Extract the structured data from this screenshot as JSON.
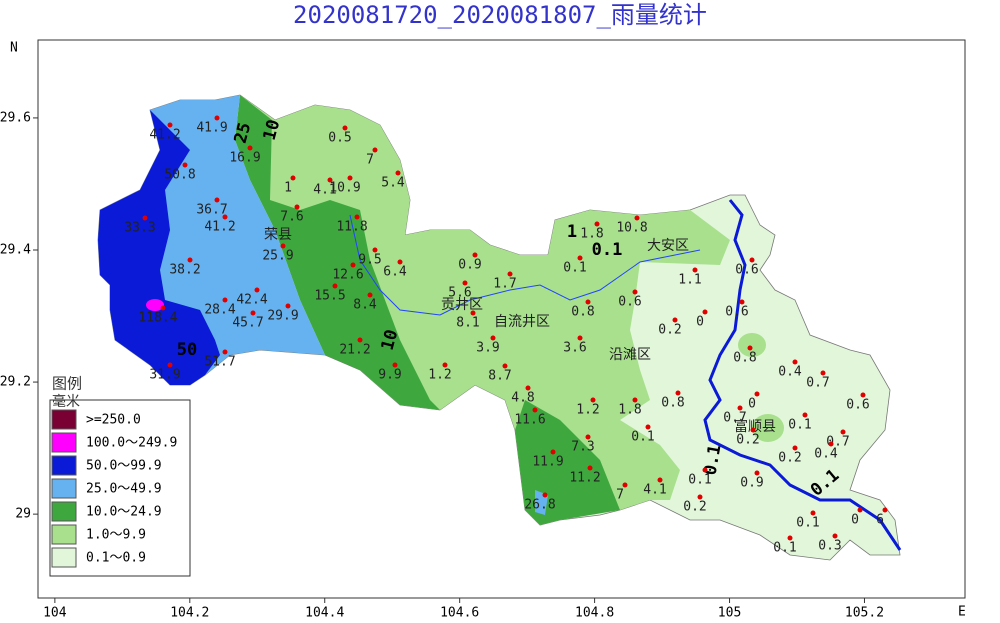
{
  "title": "2020081720_2020081807_雨量统计",
  "axes": {
    "x_label": "E",
    "y_label": "N",
    "xlim": [
      103.975,
      105.349
    ],
    "ylim": [
      28.873,
      29.718
    ],
    "xticks": [
      104,
      104.2,
      104.4,
      104.6,
      104.8,
      105,
      105.2
    ],
    "yticks": [
      29,
      29.2,
      29.4,
      29.6
    ]
  },
  "legend": {
    "title": "图例",
    "unit": "毫米",
    "items": [
      {
        "label": ">=250.0",
        "color": "#7a0033"
      },
      {
        "label": "100.0～249.9",
        "color": "#ff00ff"
      },
      {
        "label": "50.0～99.9",
        "color": "#0a1ad6"
      },
      {
        "label": "25.0～49.9",
        "color": "#66b2f0"
      },
      {
        "label": "10.0～24.9",
        "color": "#3ea83e"
      },
      {
        "label": "1.0～9.9",
        "color": "#a8e08e"
      },
      {
        "label": "0.1～0.9",
        "color": "#e2f6da"
      }
    ]
  },
  "districts": [
    "荣县",
    "贡井区",
    "自流井区",
    "大安区",
    "沿滩区",
    "富顺县"
  ],
  "contour_labels": [
    25,
    10,
    50,
    10,
    1,
    0.1,
    0.1,
    0.1
  ],
  "stations": [
    41.2,
    41.9,
    16.9,
    0.5,
    7,
    50.8,
    1,
    4.1,
    10.9,
    5.4,
    36.7,
    7.6,
    41.2,
    11.8,
    33.3,
    25.9,
    9.5,
    6.4,
    0.9,
    38.2,
    12.6,
    15.5,
    8.4,
    42.4,
    28.4,
    29.9,
    45.7,
    5.6,
    1.7,
    0.1,
    0.6,
    118.4,
    8.1,
    0.8,
    0.2,
    21.2,
    3.9,
    3.6,
    51.7,
    1.2,
    8.7,
    9.9,
    31.9,
    4.8,
    1.2,
    1.8,
    11.6,
    0.1,
    7.3,
    11.9,
    11.2,
    4.1,
    7,
    26.8,
    1.8,
    10.8,
    1.1,
    0.6,
    0.6,
    0.8,
    0.4,
    0.7,
    0.6,
    0.8,
    0,
    0.7,
    0.1,
    0.7,
    0.4,
    0.2,
    0.2,
    0.9,
    0.1,
    0.2,
    0.1,
    0,
    0.1,
    0.3,
    6,
    0
  ]
}
